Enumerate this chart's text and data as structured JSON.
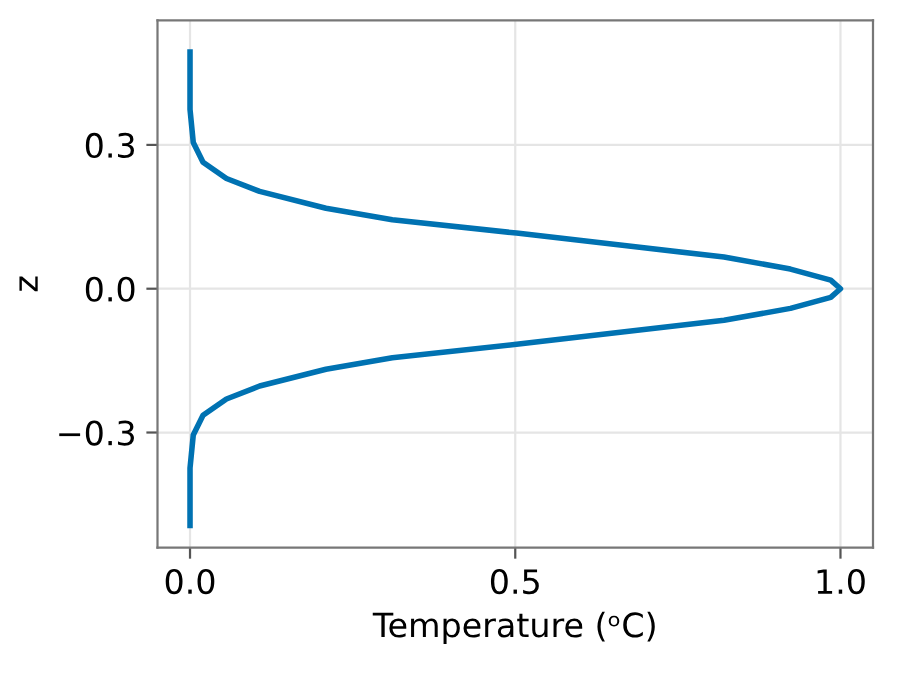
{
  "chart_data": {
    "type": "line",
    "xlabel": "Temperature (ᵒC)",
    "ylabel": "z",
    "x": [
      0,
      0,
      0.005,
      0.02,
      0.056,
      0.107,
      0.209,
      0.311,
      0.502,
      0.668,
      0.821,
      0.923,
      0.985,
      1,
      0.985,
      0.923,
      0.821,
      0.668,
      0.502,
      0.311,
      0.209,
      0.107,
      0.056,
      0.02,
      0.005,
      0,
      0
    ],
    "series": [
      {
        "color": "#0072b2",
        "values": [
          0.494,
          0.374,
          0.305,
          0.264,
          0.23,
          0.203,
          0.168,
          0.144,
          0.116,
          0.09,
          0.066,
          0.041,
          0.018,
          0,
          -0.018,
          -0.041,
          -0.066,
          -0.09,
          -0.116,
          -0.144,
          -0.168,
          -0.203,
          -0.23,
          -0.264,
          -0.305,
          -0.374,
          -0.494
        ]
      }
    ],
    "xlim": [
      -0.05,
      1.05
    ],
    "ylim": [
      -0.54,
      0.56
    ],
    "xticks": [
      {
        "value": 0,
        "label": "0.0"
      },
      0.5,
      {
        "value": 1,
        "label": "1.0"
      }
    ],
    "yticks": [
      {
        "value": -0.3,
        "label": "−0.3"
      },
      {
        "value": 0,
        "label": "0.0"
      },
      0.3
    ],
    "grid": true,
    "legend": false,
    "marker": "none",
    "line_style": "solid"
  }
}
